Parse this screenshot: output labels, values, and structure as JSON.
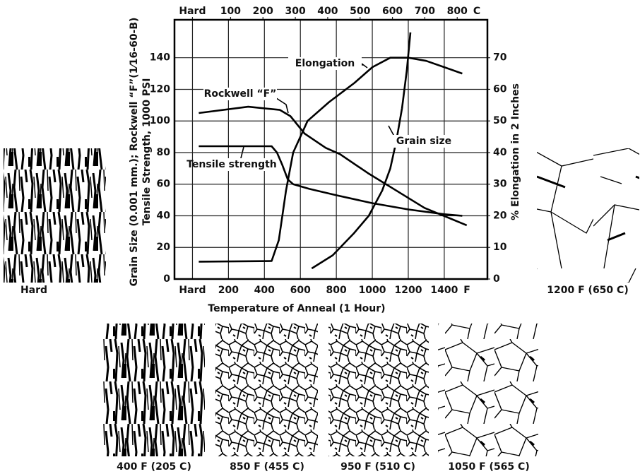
{
  "chart_data": {
    "type": "line",
    "x_label": "Temperature of Anneal (1 Hour)",
    "y_label": [
      "Grain Size (0.001 mm.); Rockwell “F”(1⁄16-60-B)",
      "Tensile Strength, 1000 PSI"
    ],
    "y2_label": "% Elongation in 2 Inches",
    "x_unit": "F",
    "x2_unit": "C",
    "xlim": [
      -100,
      1640
    ],
    "xticks": [
      {
        "value": 0,
        "label": "Hard"
      },
      200,
      400,
      600,
      800,
      1000,
      1200,
      1400
    ],
    "x2lim": [
      -73.3,
      893.3
    ],
    "x2ticks": [
      {
        "value": -17.8,
        "label": "Hard"
      },
      100,
      200,
      300,
      400,
      500,
      600,
      700,
      800
    ],
    "ylim": [
      0,
      164
    ],
    "yticks": [
      0,
      20,
      40,
      60,
      80,
      100,
      120,
      140
    ],
    "y2lim": [
      0,
      82
    ],
    "y2ticks": [
      0,
      10,
      20,
      30,
      40,
      50,
      60,
      70
    ],
    "grid": true,
    "color": "#000000",
    "series": [
      {
        "name": "Elongation",
        "axis": "y2",
        "x": [
          35,
          440,
          480,
          520,
          560,
          640,
          760,
          900,
          1000,
          1100,
          1200,
          1300,
          1400,
          1500
        ],
        "values": [
          5.5,
          5.7,
          12.3,
          28,
          40,
          50,
          56,
          62,
          67,
          70,
          70,
          69,
          67,
          65
        ]
      },
      {
        "name": "Rockwell “F”",
        "axis": "y",
        "x": [
          35,
          310,
          486,
          545,
          623,
          741,
          820,
          976,
          1133,
          1290,
          1525
        ],
        "values": [
          105,
          109,
          107,
          103,
          92,
          83,
          79,
          67,
          56,
          45,
          34
        ]
      },
      {
        "name": "Tensile strength",
        "axis": "y",
        "x": [
          35,
          440,
          470,
          500,
          530,
          560,
          650,
          800,
          1000,
          1200,
          1400,
          1500
        ],
        "values": [
          84,
          84,
          80,
          72,
          63,
          60,
          57,
          53,
          48,
          44,
          41,
          40
        ]
      },
      {
        "name": "Grain size",
        "axis": "y",
        "x": [
          663,
          780,
          898,
          980,
          1055,
          1100,
          1133,
          1165,
          1192,
          1212
        ],
        "values": [
          6.7,
          15,
          29,
          40,
          56,
          70,
          87,
          108,
          132,
          156
        ]
      }
    ]
  },
  "micrographs": [
    {
      "caption": "Hard"
    },
    {
      "caption": "1200 F (650 C)"
    },
    {
      "caption": "400 F (205 C)"
    },
    {
      "caption": "850 F (455 C)"
    },
    {
      "caption": "950 F (510 C)"
    },
    {
      "caption": "1050 F (565 C)"
    }
  ]
}
